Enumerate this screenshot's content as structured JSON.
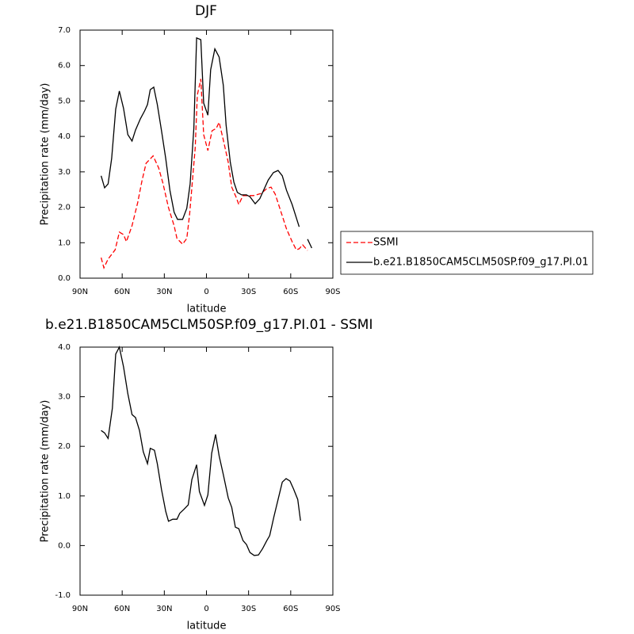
{
  "chart_data": [
    {
      "type": "line",
      "title": "DJF",
      "xlabel": "latitude",
      "ylabel": "Precipitation rate (mm/day)",
      "xlim": [
        90,
        -90
      ],
      "xticks": [
        {
          "value": 90,
          "label": "90N"
        },
        {
          "value": 60,
          "label": "60N"
        },
        {
          "value": 30,
          "label": "30N"
        },
        0,
        {
          "value": -30,
          "label": "30S"
        },
        {
          "value": -60,
          "label": "60S"
        },
        {
          "value": -90,
          "label": "90S"
        }
      ],
      "ylim": [
        0,
        7
      ],
      "yticks": [
        {
          "value": 0,
          "label": "0.0"
        },
        {
          "value": 1,
          "label": "1.0"
        },
        {
          "value": 2,
          "label": "2.0"
        },
        {
          "value": 3,
          "label": "3.0"
        },
        {
          "value": 4,
          "label": "4.0"
        },
        {
          "value": 5,
          "label": "5.0"
        },
        {
          "value": 6,
          "label": "6.0"
        },
        {
          "value": 7,
          "label": "7.0"
        }
      ],
      "legend": "outside-right",
      "series": [
        {
          "name": "SSMI",
          "color": "#ff0000",
          "line_style": "dashed",
          "x": [
            75,
            73,
            70,
            65,
            62,
            59,
            57,
            53,
            49,
            46,
            43,
            38,
            34,
            31,
            27,
            23,
            21,
            17,
            14,
            12,
            8,
            6.5,
            4,
            2,
            -1,
            -4,
            -7,
            -9,
            -12,
            -15.5,
            -18,
            -21,
            -23,
            -26,
            -29.6,
            -33.6,
            -39,
            -43,
            -46,
            -49,
            -53,
            -57,
            -61,
            -64,
            -66,
            -68.5,
            -72
          ],
          "values": [
            0.58,
            0.29,
            0.54,
            0.8,
            1.3,
            1.23,
            1.03,
            1.48,
            2.13,
            2.73,
            3.24,
            3.45,
            3.11,
            2.68,
            1.99,
            1.48,
            1.12,
            0.96,
            1.12,
            1.79,
            3.67,
            5.17,
            5.62,
            4.05,
            3.6,
            4.16,
            4.23,
            4.4,
            3.9,
            3.27,
            2.57,
            2.3,
            2.08,
            2.33,
            2.33,
            2.33,
            2.39,
            2.53,
            2.57,
            2.37,
            1.88,
            1.39,
            1.03,
            0.8,
            0.83,
            0.94,
            0.78
          ]
        },
        {
          "name": "b.e21.B1850CAM5CLM50SP.f09_g17.PI.01",
          "color": "#000000",
          "line_style": "solid",
          "x": [
            75,
            72.5,
            70,
            67.5,
            64.6,
            62,
            59,
            56,
            53,
            50.5,
            47,
            44,
            42,
            40,
            37.5,
            35,
            32,
            29,
            26,
            23,
            20.6,
            17,
            14,
            11.6,
            9,
            7,
            4,
            2,
            -1,
            -3,
            -6,
            -9,
            -12,
            -14,
            -17,
            -19.5,
            -22,
            -25,
            -28.5,
            -31,
            -34.7,
            -38,
            -41.5,
            -44,
            -47.7,
            -51,
            -54,
            -57,
            -61,
            -63.5,
            -66,
            -69,
            -72,
            -75
          ],
          "values": [
            2.89,
            2.55,
            2.66,
            3.38,
            4.77,
            5.28,
            4.79,
            4.05,
            3.87,
            4.18,
            4.5,
            4.72,
            4.9,
            5.32,
            5.39,
            4.9,
            4.16,
            3.38,
            2.48,
            1.86,
            1.66,
            1.66,
            1.97,
            2.66,
            4.23,
            6.78,
            6.73,
            4.94,
            4.6,
            5.88,
            6.47,
            6.24,
            5.44,
            4.32,
            3.27,
            2.71,
            2.42,
            2.35,
            2.35,
            2.3,
            2.1,
            2.24,
            2.55,
            2.77,
            2.98,
            3.04,
            2.89,
            2.48,
            2.08,
            1.77,
            1.45,
            null,
            1.1,
            0.85
          ]
        }
      ]
    },
    {
      "type": "line",
      "title": "b.e21.B1850CAM5CLM50SP.f09_g17.PI.01 - SSMI",
      "xlabel": "latitude",
      "ylabel": "Precipitation rate (mm/day)",
      "xlim": [
        90,
        -90
      ],
      "xticks": [
        {
          "value": 90,
          "label": "90N"
        },
        {
          "value": 60,
          "label": "60N"
        },
        {
          "value": 30,
          "label": "30N"
        },
        0,
        {
          "value": -30,
          "label": "30S"
        },
        {
          "value": -60,
          "label": "60S"
        },
        {
          "value": -90,
          "label": "90S"
        }
      ],
      "ylim": [
        -1,
        4
      ],
      "yticks": [
        {
          "value": -1,
          "label": "-1.0"
        },
        {
          "value": 0,
          "label": "0.0"
        },
        {
          "value": 1,
          "label": "1.0"
        },
        {
          "value": 2,
          "label": "2.0"
        },
        {
          "value": 3,
          "label": "3.0"
        },
        {
          "value": 4,
          "label": "4.0"
        }
      ],
      "series": [
        {
          "color": "#000000",
          "line_style": "solid",
          "x": [
            75,
            72.5,
            70,
            67,
            64.6,
            62,
            59,
            56,
            53,
            50.5,
            47.7,
            45,
            42,
            40,
            37,
            35,
            32,
            29,
            27,
            24,
            21,
            19,
            16,
            13,
            10.4,
            7,
            5,
            1.4,
            -1,
            -3.7,
            -6.5,
            -9,
            -12,
            -15.5,
            -18,
            -20.6,
            -23,
            -26,
            -28.5,
            -31,
            -34,
            -37,
            -40,
            -43,
            -45,
            -48,
            -51,
            -54,
            -56.7,
            -59.5,
            -62,
            -65,
            -67
          ],
          "values": [
            2.32,
            2.27,
            2.16,
            2.77,
            3.86,
            4.0,
            3.6,
            3.06,
            2.64,
            2.58,
            2.32,
            1.89,
            1.65,
            1.96,
            1.92,
            1.65,
            1.13,
            0.69,
            0.49,
            0.53,
            0.53,
            0.65,
            0.73,
            0.82,
            1.33,
            1.63,
            1.09,
            0.81,
            1.02,
            1.86,
            2.24,
            1.81,
            1.43,
            0.96,
            0.77,
            0.37,
            0.34,
            0.1,
            0.02,
            -0.14,
            -0.2,
            -0.19,
            -0.06,
            0.1,
            0.2,
            0.58,
            0.93,
            1.28,
            1.35,
            1.3,
            1.14,
            0.93,
            0.5
          ]
        }
      ]
    }
  ]
}
